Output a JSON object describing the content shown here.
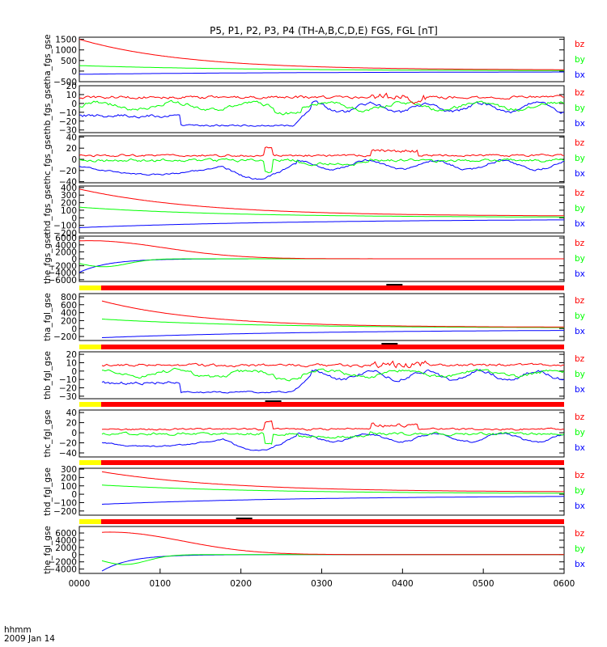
{
  "title": "P5, P1, P2, P3, P4 (TH-A,B,C,D,E) FGS, FGL [nT]",
  "footer": {
    "axis_label": "hhmm",
    "date": "2009 Jan 14"
  },
  "colors": {
    "bx": "#0000ff",
    "by": "#00ff00",
    "bz": "#ff0000",
    "black": "#000000",
    "purple": "#aa00aa",
    "olive": "#8c8c00",
    "yellow": "#ffff00",
    "bar_red": "#ff0000"
  },
  "chart_data": {
    "type": "line",
    "x_axis": {
      "range": [
        "0000",
        "0600"
      ],
      "tick_labels": [
        "0000",
        "0100",
        "0200",
        "0300",
        "0400",
        "0500",
        "0600"
      ]
    },
    "panels": [
      {
        "ylabel": "tha_fgs_gse",
        "ylim": [
          -500,
          1600
        ],
        "ticks": [
          1500,
          1000,
          500,
          0,
          -500
        ],
        "tick_labels": [
          "1500",
          "1000",
          "500",
          "0",
          "−500"
        ],
        "legend": [
          "bz",
          "by",
          "bx"
        ],
        "start": 0,
        "series": [
          {
            "name": "bz",
            "shape": "decay",
            "start_value": 1500,
            "end_value": 50,
            "tau": 0.22
          },
          {
            "name": "by",
            "shape": "decay",
            "start_value": 260,
            "end_value": 10,
            "tau": 0.35
          },
          {
            "name": "bx",
            "shape": "rise",
            "start_value": -150,
            "end_value": -30,
            "tau": 0.45
          }
        ]
      },
      {
        "ylabel": "thb_fgs_gse",
        "ylim": [
          -33,
          20
        ],
        "ticks": [
          20,
          10,
          0,
          -10,
          -20,
          -30
        ],
        "tick_labels": [
          "20",
          "10",
          "0",
          "−10",
          "−20",
          "−30"
        ],
        "legend": [
          "bz",
          "by",
          "bx"
        ],
        "start": 0,
        "variant": "b",
        "series": [
          {
            "name": "bz"
          },
          {
            "name": "by"
          },
          {
            "name": "bx"
          }
        ]
      },
      {
        "ylabel": "thc_fgs_gse",
        "ylim": [
          -42,
          42
        ],
        "ticks": [
          40,
          20,
          0,
          -20,
          -40
        ],
        "tick_labels": [
          "40",
          "20",
          "0",
          "−20",
          "−40"
        ],
        "legend": [
          "bz",
          "by",
          "bx"
        ],
        "start": 0,
        "variant": "c",
        "series": [
          {
            "name": "bz"
          },
          {
            "name": "by"
          },
          {
            "name": "bx"
          }
        ]
      },
      {
        "ylabel": "thd_fgs_gse",
        "ylim": [
          -200,
          420
        ],
        "ticks": [
          400,
          300,
          200,
          100,
          0,
          -100,
          -200
        ],
        "tick_labels": [
          "400",
          "300",
          "200",
          "100",
          "0",
          "−100",
          "−200"
        ],
        "legend": [
          "bz",
          "by",
          "bx"
        ],
        "start": 0,
        "series": [
          {
            "name": "bz",
            "shape": "decay",
            "start_value": 380,
            "end_value": 20,
            "tau": 0.25
          },
          {
            "name": "by",
            "shape": "decay",
            "start_value": 140,
            "end_value": 5,
            "tau": 0.3
          },
          {
            "name": "bx",
            "shape": "rise",
            "start_value": -130,
            "end_value": -15,
            "tau": 0.45
          }
        ]
      },
      {
        "ylabel": "the_fgs_gse",
        "ylim": [
          -6500,
          6500
        ],
        "ticks": [
          6000,
          4000,
          2000,
          0,
          -2000,
          -4000,
          -6000
        ],
        "tick_labels": [
          "6000",
          "4000",
          "2000",
          "0",
          "−2000",
          "−4000",
          "−6000"
        ],
        "legend": [
          "bz",
          "by",
          "bx"
        ],
        "start": 0,
        "variant": "e",
        "series": [
          {
            "name": "bz"
          },
          {
            "name": "by"
          },
          {
            "name": "bx"
          }
        ]
      },
      {
        "ylabel": "tha_fgl_gse",
        "ylim": [
          -300,
          880
        ],
        "ticks": [
          800,
          600,
          400,
          200,
          0,
          -200
        ],
        "tick_labels": [
          "800",
          "600",
          "400",
          "200",
          "0",
          "−200"
        ],
        "legend": [
          "bz",
          "by",
          "bx"
        ],
        "start": 0.045,
        "series": [
          {
            "name": "bz",
            "shape": "decay",
            "start_value": 700,
            "end_value": 30,
            "tau": 0.22
          },
          {
            "name": "by",
            "shape": "decay",
            "start_value": 240,
            "end_value": 15,
            "tau": 0.32
          },
          {
            "name": "bx",
            "shape": "rise",
            "start_value": -230,
            "end_value": -25,
            "tau": 0.45
          }
        ]
      },
      {
        "ylabel": "thb_fgl_gse",
        "ylim": [
          -33,
          23
        ],
        "ticks": [
          20,
          10,
          0,
          -10,
          -20,
          -30
        ],
        "tick_labels": [
          "20",
          "10",
          "0",
          "−10",
          "−20",
          "−30"
        ],
        "legend": [
          "bz",
          "by",
          "bx"
        ],
        "start": 0.045,
        "variant": "b",
        "series": [
          {
            "name": "bz"
          },
          {
            "name": "by"
          },
          {
            "name": "bx"
          }
        ]
      },
      {
        "ylabel": "thc_fgl_gse",
        "ylim": [
          -48,
          45
        ],
        "ticks": [
          40,
          20,
          0,
          -20,
          -40
        ],
        "tick_labels": [
          "40",
          "20",
          "0",
          "−20",
          "−40"
        ],
        "legend": [
          "bz",
          "by",
          "bx"
        ],
        "start": 0.045,
        "variant": "c",
        "series": [
          {
            "name": "bz"
          },
          {
            "name": "by"
          },
          {
            "name": "bx"
          }
        ]
      },
      {
        "ylabel": "thd_fgl_gse",
        "ylim": [
          -250,
          310
        ],
        "ticks": [
          300,
          200,
          100,
          0,
          -100,
          -200
        ],
        "tick_labels": [
          "300",
          "200",
          "100",
          "0",
          "−100",
          "−200"
        ],
        "legend": [
          "bz",
          "by",
          "bx"
        ],
        "start": 0.045,
        "series": [
          {
            "name": "bz",
            "shape": "decay",
            "start_value": 270,
            "end_value": 25,
            "tau": 0.27
          },
          {
            "name": "by",
            "shape": "decay",
            "start_value": 110,
            "end_value": 5,
            "tau": 0.35
          },
          {
            "name": "bx",
            "shape": "rise",
            "start_value": -120,
            "end_value": -15,
            "tau": 0.45
          }
        ]
      },
      {
        "ylabel": "the_fgl_gse",
        "ylim": [
          -5200,
          7800
        ],
        "ticks": [
          6000,
          4000,
          2000,
          0,
          -2000,
          -4000
        ],
        "tick_labels": [
          "6000",
          "4000",
          "2000",
          "0",
          "−2000",
          "−4000"
        ],
        "legend": [
          "bz",
          "by",
          "bx"
        ],
        "start": 0.045,
        "variant": "e",
        "series": [
          {
            "name": "bz"
          },
          {
            "name": "by"
          },
          {
            "name": "bx"
          }
        ]
      }
    ],
    "mode_bars": [
      {
        "after_panel": 4,
        "segments": [
          {
            "color": "yellow",
            "from": 0.0,
            "to": 0.045
          },
          {
            "color": "bar_red",
            "from": 0.045,
            "to": 1.0
          }
        ],
        "mark_at": 0.65
      },
      {
        "after_panel": 5,
        "segments": [
          {
            "color": "yellow",
            "from": 0.0,
            "to": 0.045
          },
          {
            "color": "bar_red",
            "from": 0.045,
            "to": 1.0
          }
        ],
        "mark_at": 0.64
      },
      {
        "after_panel": 6,
        "segments": [
          {
            "color": "yellow",
            "from": 0.0,
            "to": 0.045
          },
          {
            "color": "bar_red",
            "from": 0.045,
            "to": 1.0
          }
        ],
        "mark_at": 0.4
      },
      {
        "after_panel": 7,
        "segments": [
          {
            "color": "yellow",
            "from": 0.0,
            "to": 0.045
          },
          {
            "color": "bar_red",
            "from": 0.045,
            "to": 1.0
          }
        ],
        "mark_at": null
      },
      {
        "after_panel": 8,
        "segments": [
          {
            "color": "yellow",
            "from": 0.0,
            "to": 0.045
          },
          {
            "color": "bar_red",
            "from": 0.045,
            "to": 1.0
          }
        ],
        "mark_at": 0.34
      }
    ],
    "grid": false,
    "legend_position": "right"
  }
}
